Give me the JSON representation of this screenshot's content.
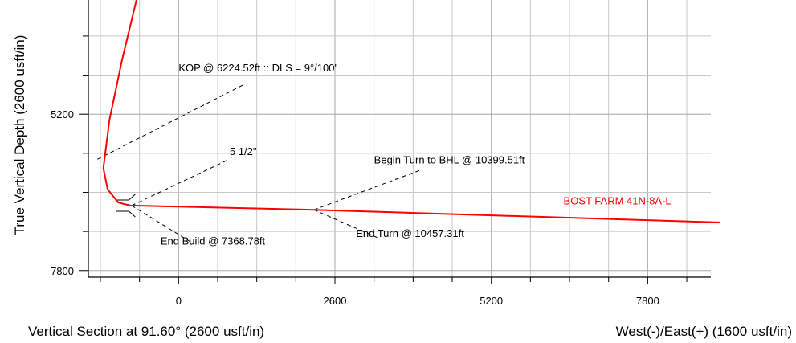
{
  "chart_data": {
    "type": "line",
    "ylabel": "True Vertical Depth (2600 usft/in)",
    "xlabel_left": "Vertical Section at 91.60° (2600 usft/in)",
    "xlabel_right": "West(-)/East(+) (1600 usft/in)",
    "xlim": [
      -1500,
      8850
    ],
    "ylim": [
      3300,
      7910
    ],
    "y_inverted": true,
    "grid": true,
    "x_ticks": [
      0,
      2600,
      5200,
      7800
    ],
    "x_tick_labels": [
      "0",
      "2600",
      "5200",
      "7800"
    ],
    "y_ticks": [
      5200,
      7800
    ],
    "y_tick_labels": [
      "5200",
      "7800"
    ],
    "series": [
      {
        "name": "BOST FARM 41N-8A-L",
        "color": "#ff0000",
        "points": [
          [
            -700,
            3300
          ],
          [
            -940,
            4300
          ],
          [
            -1150,
            5300
          ],
          [
            -1250,
            6100
          ],
          [
            -1180,
            6450
          ],
          [
            -1000,
            6670
          ],
          [
            -800,
            6720
          ],
          [
            2250,
            6790
          ],
          [
            9000,
            7000
          ]
        ]
      }
    ],
    "annotations": [
      {
        "text": "KOP @ 6224.52ft :: DLS = 9°/100'",
        "target": [
          -1350,
          5950
        ],
        "end": [
          1100,
          4700
        ],
        "label_at": [
          0,
          4490
        ]
      },
      {
        "text": "5 1/2\"",
        "target": [
          -780,
          6720
        ],
        "end": [
          800,
          5970
        ],
        "label_at": [
          850,
          5880
        ]
      },
      {
        "text": "Begin Turn to BHL @ 10399.51ft",
        "target": [
          2250,
          6790
        ],
        "end": [
          4050,
          6120
        ],
        "label_at": [
          3250,
          6020
        ]
      },
      {
        "text": "End Turn @ 10457.31ft",
        "target": [
          2250,
          6790
        ],
        "end": [
          3300,
          7250
        ],
        "label_at": [
          2950,
          7240
        ]
      },
      {
        "text": "End Build @ 7368.78ft",
        "target": [
          -780,
          6720
        ],
        "end": [
          210,
          7330
        ],
        "label_at": [
          -300,
          7370
        ]
      }
    ],
    "series_label": {
      "text": "BOST FARM 41N-8A-L",
      "at": [
        6400,
        6700
      ]
    }
  }
}
